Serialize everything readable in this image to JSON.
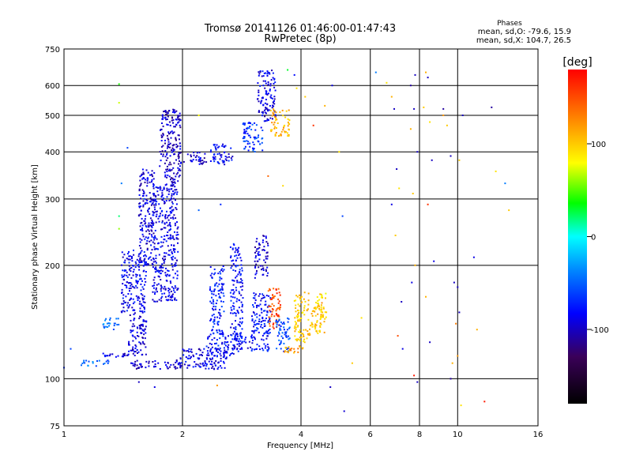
{
  "chart_data": {
    "type": "scatter",
    "title": "Tromsø 20141126 01:46:00-01:47:43",
    "subtitle": "RwPretec (8p)",
    "xlabel": "Frequency [MHz]",
    "ylabel": "Stationary phase Virtual Height [km]",
    "x_scale": "log",
    "y_scale": "log",
    "xlim": [
      1,
      16
    ],
    "ylim": [
      75,
      750
    ],
    "x_ticks": [
      1,
      2,
      4,
      6,
      8,
      10,
      16
    ],
    "x_tick_labels": [
      "1",
      "2",
      "4",
      "6",
      "8",
      "10",
      "16"
    ],
    "y_ticks": [
      75,
      100,
      200,
      300,
      400,
      500,
      600,
      750
    ],
    "y_tick_labels": [
      "75",
      "100",
      "200",
      "300",
      "400",
      "500",
      "600",
      "750"
    ],
    "x_grid": [
      1,
      2,
      4,
      6,
      8,
      10,
      16
    ],
    "y_grid": [
      75,
      100,
      200,
      300,
      400,
      500,
      600,
      750
    ],
    "phases_legend": {
      "heading": "Phases",
      "line_o": "mean, sd,O: -79.6, 15.9",
      "line_x": "mean, sd,X: 104.7, 26.5"
    },
    "colorbar": {
      "label": "[deg]",
      "range": [
        -180,
        180
      ],
      "ticks": [
        100,
        0,
        -100
      ],
      "tick_labels": [
        "100",
        "0",
        "-100"
      ]
    },
    "traces": [
      {
        "f": [
          1.22,
          1.46
        ],
        "h": [
          114,
          117
        ],
        "phase": -90
      },
      {
        "f": [
          1.46,
          1.62
        ],
        "h": [
          115,
          150
        ],
        "phase": -95
      },
      {
        "f": [
          1.4,
          1.62
        ],
        "h": [
          150,
          220
        ],
        "phase": -85
      },
      {
        "f": [
          1.55,
          1.7
        ],
        "h": [
          200,
          360
        ],
        "phase": -92
      },
      {
        "f": [
          1.68,
          1.95
        ],
        "h": [
          160,
          330
        ],
        "phase": -88
      },
      {
        "f": [
          1.75,
          1.98
        ],
        "h": [
          330,
          520
        ],
        "phase": -98
      },
      {
        "f": [
          1.95,
          2.3
        ],
        "h": [
          370,
          400
        ],
        "phase": -95
      },
      {
        "f": [
          2.35,
          2.7
        ],
        "h": [
          370,
          420
        ],
        "phase": -85
      },
      {
        "f": [
          1.48,
          2.0
        ],
        "h": [
          106,
          112
        ],
        "phase": -100
      },
      {
        "f": [
          1.95,
          2.6
        ],
        "h": [
          106,
          120
        ],
        "phase": -90
      },
      {
        "f": [
          2.3,
          2.7
        ],
        "h": [
          115,
          130
        ],
        "phase": -80
      },
      {
        "f": [
          2.35,
          2.55
        ],
        "h": [
          130,
          200
        ],
        "phase": -75
      },
      {
        "f": [
          2.65,
          2.85
        ],
        "h": [
          125,
          230
        ],
        "phase": -80
      },
      {
        "f": [
          2.7,
          3.0
        ],
        "h": [
          117,
          130
        ],
        "phase": -85
      },
      {
        "f": [
          3.0,
          3.35
        ],
        "h": [
          118,
          170
        ],
        "phase": -80
      },
      {
        "f": [
          3.05,
          3.3
        ],
        "h": [
          185,
          240
        ],
        "phase": -95
      },
      {
        "f": [
          2.85,
          3.2
        ],
        "h": [
          400,
          480
        ],
        "phase": -65
      },
      {
        "f": [
          3.1,
          3.45
        ],
        "h": [
          480,
          660
        ],
        "phase": -90
      },
      {
        "f": [
          3.35,
          3.75
        ],
        "h": [
          440,
          520
        ],
        "phase": 110
      },
      {
        "f": [
          3.3,
          3.55
        ],
        "h": [
          135,
          175
        ],
        "phase": 150
      },
      {
        "f": [
          3.45,
          3.75
        ],
        "h": [
          118,
          145
        ],
        "phase": -60
      },
      {
        "f": [
          3.6,
          4.05
        ],
        "h": [
          117,
          123
        ],
        "phase": 120
      },
      {
        "f": [
          3.85,
          4.2
        ],
        "h": [
          125,
          170
        ],
        "phase": 100
      },
      {
        "f": [
          4.2,
          4.6
        ],
        "h": [
          130,
          160
        ],
        "phase": 105
      },
      {
        "f": [
          4.4,
          4.65
        ],
        "h": [
          145,
          170
        ],
        "phase": 90
      },
      {
        "f": [
          1.1,
          1.3
        ],
        "h": [
          108,
          112
        ],
        "phase": -50
      },
      {
        "f": [
          1.25,
          1.38
        ],
        "h": [
          135,
          145
        ],
        "phase": -40
      }
    ],
    "scatter_points": [
      {
        "f": 1.38,
        "h": 605,
        "phase": 40
      },
      {
        "f": 1.38,
        "h": 540,
        "phase": 70
      },
      {
        "f": 1.45,
        "h": 410,
        "phase": -60
      },
      {
        "f": 1.4,
        "h": 330,
        "phase": -40
      },
      {
        "f": 1.38,
        "h": 270,
        "phase": 20
      },
      {
        "f": 1.38,
        "h": 250,
        "phase": 60
      },
      {
        "f": 1.55,
        "h": 98,
        "phase": -100
      },
      {
        "f": 1.7,
        "h": 95,
        "phase": -90
      },
      {
        "f": 2.45,
        "h": 96,
        "phase": 120
      },
      {
        "f": 2.2,
        "h": 500,
        "phase": 80
      },
      {
        "f": 3.9,
        "h": 590,
        "phase": 90
      },
      {
        "f": 4.1,
        "h": 560,
        "phase": 100
      },
      {
        "f": 4.6,
        "h": 530,
        "phase": 110
      },
      {
        "f": 4.3,
        "h": 470,
        "phase": 160
      },
      {
        "f": 3.6,
        "h": 325,
        "phase": 95
      },
      {
        "f": 3.3,
        "h": 345,
        "phase": 140
      },
      {
        "f": 4.75,
        "h": 95,
        "phase": -100
      },
      {
        "f": 5.15,
        "h": 82,
        "phase": -95
      },
      {
        "f": 5.1,
        "h": 270,
        "phase": -60
      },
      {
        "f": 5.7,
        "h": 145,
        "phase": 90
      },
      {
        "f": 5.4,
        "h": 110,
        "phase": 100
      },
      {
        "f": 6.2,
        "h": 650,
        "phase": -40
      },
      {
        "f": 6.6,
        "h": 610,
        "phase": 90
      },
      {
        "f": 6.8,
        "h": 560,
        "phase": 110
      },
      {
        "f": 6.9,
        "h": 520,
        "phase": -100
      },
      {
        "f": 7.0,
        "h": 360,
        "phase": -100
      },
      {
        "f": 7.1,
        "h": 320,
        "phase": 90
      },
      {
        "f": 6.8,
        "h": 290,
        "phase": -90
      },
      {
        "f": 6.95,
        "h": 240,
        "phase": 100
      },
      {
        "f": 7.2,
        "h": 160,
        "phase": -100
      },
      {
        "f": 7.05,
        "h": 130,
        "phase": 150
      },
      {
        "f": 7.25,
        "h": 120,
        "phase": -90
      },
      {
        "f": 7.8,
        "h": 640,
        "phase": -100
      },
      {
        "f": 7.6,
        "h": 600,
        "phase": -110
      },
      {
        "f": 7.75,
        "h": 520,
        "phase": -100
      },
      {
        "f": 7.6,
        "h": 460,
        "phase": 110
      },
      {
        "f": 7.9,
        "h": 400,
        "phase": -100
      },
      {
        "f": 7.7,
        "h": 310,
        "phase": 100
      },
      {
        "f": 7.8,
        "h": 200,
        "phase": 110
      },
      {
        "f": 7.65,
        "h": 180,
        "phase": -90
      },
      {
        "f": 7.75,
        "h": 102,
        "phase": 170
      },
      {
        "f": 7.9,
        "h": 98,
        "phase": -100
      },
      {
        "f": 8.3,
        "h": 650,
        "phase": 110
      },
      {
        "f": 8.4,
        "h": 630,
        "phase": -100
      },
      {
        "f": 8.2,
        "h": 525,
        "phase": 100
      },
      {
        "f": 8.5,
        "h": 480,
        "phase": 90
      },
      {
        "f": 8.6,
        "h": 380,
        "phase": -100
      },
      {
        "f": 8.4,
        "h": 290,
        "phase": 160
      },
      {
        "f": 8.7,
        "h": 205,
        "phase": -90
      },
      {
        "f": 8.3,
        "h": 165,
        "phase": 110
      },
      {
        "f": 8.5,
        "h": 125,
        "phase": -100
      },
      {
        "f": 9.2,
        "h": 500,
        "phase": 120
      },
      {
        "f": 9.4,
        "h": 470,
        "phase": 100
      },
      {
        "f": 9.6,
        "h": 390,
        "phase": -100
      },
      {
        "f": 9.2,
        "h": 520,
        "phase": -110
      },
      {
        "f": 9.8,
        "h": 180,
        "phase": -100
      },
      {
        "f": 9.9,
        "h": 140,
        "phase": 130
      },
      {
        "f": 9.7,
        "h": 110,
        "phase": 110
      },
      {
        "f": 9.6,
        "h": 100,
        "phase": -110
      },
      {
        "f": 10.0,
        "h": 175,
        "phase": -100
      },
      {
        "f": 10.1,
        "h": 150,
        "phase": -100
      },
      {
        "f": 10.0,
        "h": 115,
        "phase": 120
      },
      {
        "f": 10.2,
        "h": 85,
        "phase": 90
      },
      {
        "f": 10.3,
        "h": 500,
        "phase": -100
      },
      {
        "f": 10.1,
        "h": 380,
        "phase": 100
      },
      {
        "f": 11.0,
        "h": 210,
        "phase": -90
      },
      {
        "f": 11.2,
        "h": 135,
        "phase": 110
      },
      {
        "f": 11.7,
        "h": 87,
        "phase": 170
      },
      {
        "f": 12.2,
        "h": 525,
        "phase": -110
      },
      {
        "f": 12.5,
        "h": 355,
        "phase": 90
      },
      {
        "f": 13.2,
        "h": 330,
        "phase": -40
      },
      {
        "f": 13.5,
        "h": 280,
        "phase": 100
      },
      {
        "f": 4.8,
        "h": 600,
        "phase": -90
      },
      {
        "f": 5.0,
        "h": 400,
        "phase": 90
      },
      {
        "f": 3.7,
        "h": 660,
        "phase": 30
      },
      {
        "f": 3.85,
        "h": 640,
        "phase": -80
      },
      {
        "f": 1.6,
        "h": 300,
        "phase": -60
      },
      {
        "f": 2.5,
        "h": 290,
        "phase": -70
      },
      {
        "f": 2.2,
        "h": 280,
        "phase": -50
      },
      {
        "f": 1.0,
        "h": 107,
        "phase": -70
      },
      {
        "f": 1.04,
        "h": 120,
        "phase": -60
      }
    ]
  }
}
